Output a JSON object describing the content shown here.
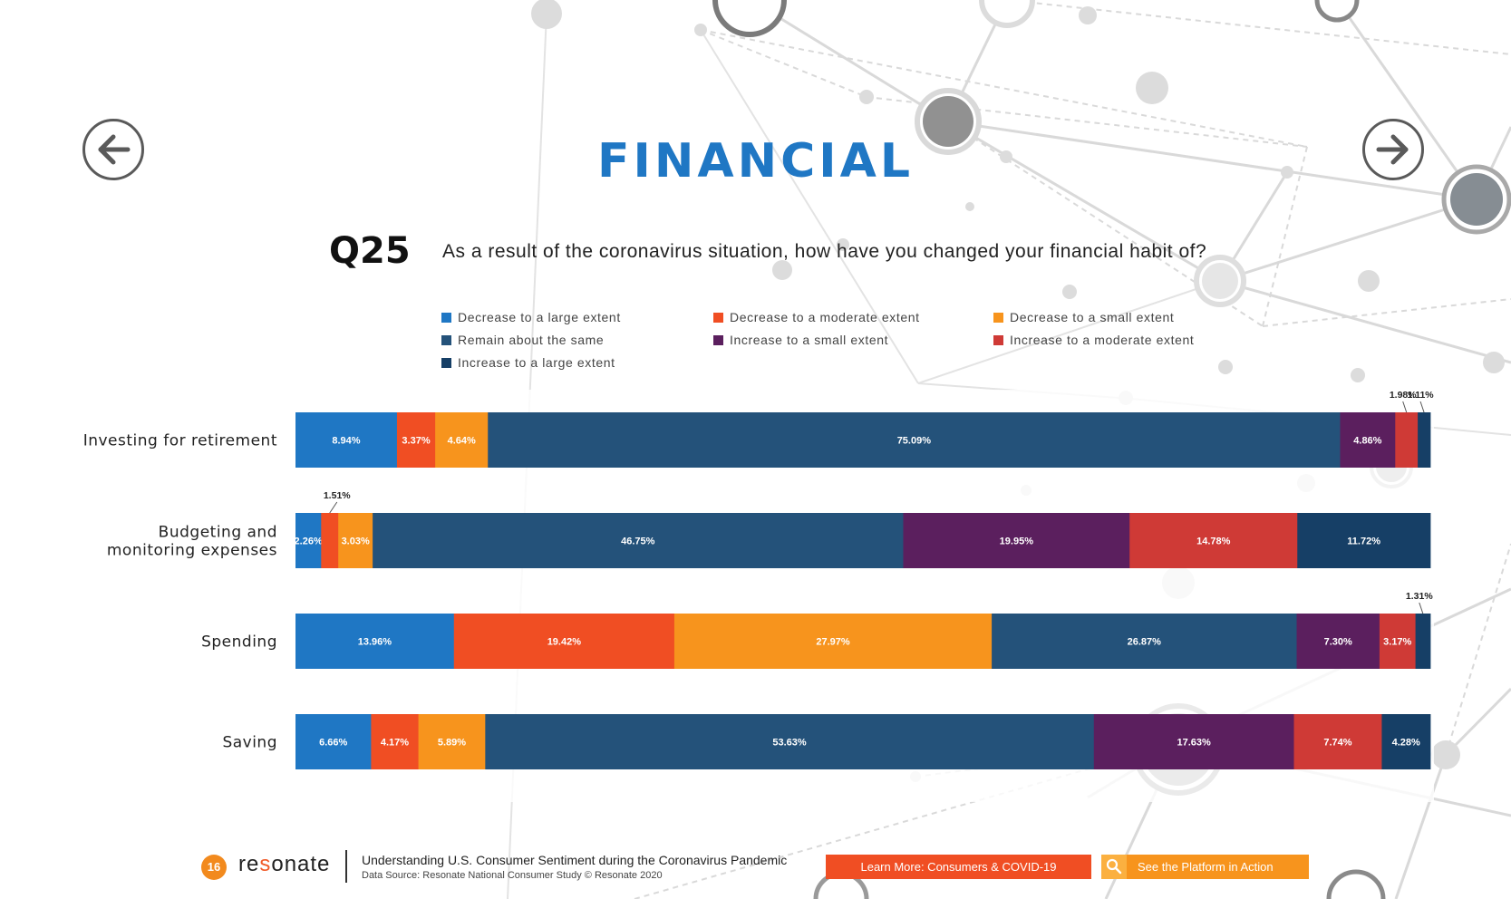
{
  "title": "FINANCIAL",
  "question": {
    "number": "Q25",
    "text": "As a result of the coronavirus situation, how have you changed your financial habit of?"
  },
  "nav": {
    "prev_icon": "arrow-left-icon",
    "next_icon": "arrow-right-icon"
  },
  "colors": {
    "title": "#1f77c4",
    "decrease_large": "#1f77c4",
    "decrease_moderate": "#f04e23",
    "decrease_small": "#f7941d",
    "remain_same": "#24527a",
    "increase_small": "#5b1f5e",
    "increase_moderate": "#cf3a36",
    "increase_large": "#163f66"
  },
  "chart_data": {
    "type": "bar",
    "orientation": "horizontal",
    "stacked": true,
    "legend_position": "top",
    "categories": [
      "Investing for retirement",
      "Budgeting and monitoring expenses",
      "Spending",
      "Saving"
    ],
    "series": [
      {
        "name": "Decrease to a large extent",
        "values": [
          8.94,
          2.26,
          13.96,
          6.66
        ],
        "labels": [
          "8.94%",
          "2.26%",
          "13.96%",
          "6.66%"
        ],
        "color": "#1f77c4"
      },
      {
        "name": "Decrease to a moderate extent",
        "values": [
          3.37,
          1.51,
          19.42,
          4.17
        ],
        "labels": [
          "3.37%",
          "1.51%",
          "19.42%",
          "4.17%"
        ],
        "color": "#f04e23"
      },
      {
        "name": "Decrease to a small extent",
        "values": [
          4.64,
          3.03,
          27.97,
          5.89
        ],
        "labels": [
          "4.64%",
          "3.03%",
          "27.97%",
          "5.89%"
        ],
        "color": "#f7941d"
      },
      {
        "name": "Remain about the same",
        "values": [
          75.09,
          46.75,
          26.87,
          53.63
        ],
        "labels": [
          "75.09%",
          "46.75%",
          "26.87%",
          "53.63%"
        ],
        "color": "#24527a"
      },
      {
        "name": "Increase to a small extent",
        "values": [
          4.86,
          19.95,
          7.3,
          17.63
        ],
        "labels": [
          "4.86%",
          "19.95%",
          "7.30%",
          "17.63%"
        ],
        "color": "#5b1f5e"
      },
      {
        "name": "Increase to a moderate extent",
        "values": [
          1.98,
          14.78,
          3.17,
          7.74
        ],
        "labels": [
          "1.98%",
          "14.78%",
          "3.17%",
          "7.74%"
        ],
        "color": "#cf3a36"
      },
      {
        "name": "Increase to a large extent",
        "values": [
          1.11,
          11.72,
          1.31,
          4.28
        ],
        "labels": [
          "1.11%",
          "11.72%",
          "1.31%",
          "4.28%"
        ],
        "color": "#163f66"
      }
    ]
  },
  "footer": {
    "page_number": "16",
    "logo": "resonate",
    "line1": "Understanding U.S. Consumer Sentiment during the Coronavirus Pandemic",
    "line2": "Data Source: Resonate National Consumer Study © Resonate 2020",
    "button_learn": "Learn More: Consumers & COVID-19",
    "button_platform": "See the Platform in Action",
    "platform_icon": "magnifier-icon"
  }
}
